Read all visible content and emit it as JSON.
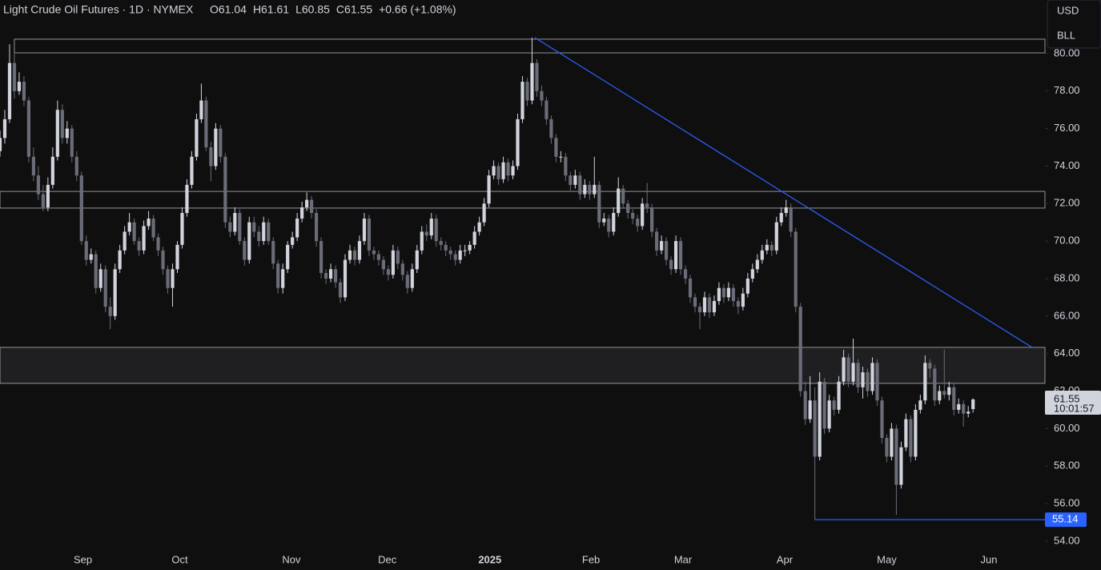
{
  "chart_data": {
    "type": "candlestick",
    "title": "Light Crude Oil Futures · 1D · NYMEX",
    "ohlc_labels": [
      "O61.04",
      "H61.61",
      "L60.85",
      "C61.55",
      "+0.66 (+1.08%)"
    ],
    "currency": "USD",
    "unit": "BLL",
    "countdown": "10:01:57",
    "up_color": "#d1d4dc",
    "down_color": "#6a6d78",
    "xlim": [
      0,
      218
    ],
    "xticks": [
      {
        "value": 17.3,
        "label": "Sep"
      },
      {
        "value": 37.5,
        "label": "Oct"
      },
      {
        "value": 60.8,
        "label": "Nov"
      },
      {
        "value": 80.8,
        "label": "Dec"
      },
      {
        "value": 102.2,
        "label": "2025"
      },
      {
        "value": 123.3,
        "label": "Feb"
      },
      {
        "value": 142.5,
        "label": "Mar"
      },
      {
        "value": 163.7,
        "label": "Apr"
      },
      {
        "value": 185,
        "label": "May"
      },
      {
        "value": 206.3,
        "label": "Jun"
      }
    ],
    "ylim": [
      53.48,
      82.86
    ],
    "yticks": [
      {
        "value": 54,
        "label": "54.00"
      },
      {
        "value": 56,
        "label": "56.00"
      },
      {
        "value": 58,
        "label": "58.00"
      },
      {
        "value": 60,
        "label": "60.00"
      },
      {
        "value": 62,
        "label": "62.00"
      },
      {
        "value": 64,
        "label": "64.00"
      },
      {
        "value": 66,
        "label": "66.00"
      },
      {
        "value": 68,
        "label": "68.00"
      },
      {
        "value": 70,
        "label": "70.00"
      },
      {
        "value": 72,
        "label": "72.00"
      },
      {
        "value": 74,
        "label": "74.00"
      },
      {
        "value": 76,
        "label": "76.00"
      },
      {
        "value": 78,
        "label": "78.00"
      },
      {
        "value": 80,
        "label": "80.00"
      }
    ],
    "zones": [
      {
        "from": 3,
        "low": 80.04,
        "high": 80.77
      },
      {
        "from": 0,
        "low": 71.76,
        "high": 72.65
      },
      {
        "from": 0,
        "low": 62.41,
        "high": 64.33
      }
    ],
    "trendline": {
      "x": [
        111.6,
        215.5
      ],
      "y": [
        80.85,
        64.3
      ],
      "color": "#2962ff"
    },
    "support": {
      "from": 170,
      "value": 55.14,
      "color": "#2962ff"
    },
    "candles": [
      [
        74.8,
        75.9,
        74.5,
        75.5
      ],
      [
        75.5,
        77,
        75.2,
        76.5
      ],
      [
        76.5,
        80.5,
        76.3,
        79.5
      ],
      [
        79.5,
        80,
        77.6,
        78
      ],
      [
        78,
        79,
        77.8,
        78.5
      ],
      [
        78.5,
        78.8,
        77.2,
        77.5
      ],
      [
        77.5,
        77.7,
        74.2,
        74.5
      ],
      [
        74.5,
        75,
        73.2,
        73.5
      ],
      [
        73.5,
        74,
        72.2,
        72.5
      ],
      [
        72.5,
        73,
        71.6,
        71.8
      ],
      [
        71.8,
        73.4,
        71.6,
        73
      ],
      [
        73,
        75,
        72.8,
        74.5
      ],
      [
        74.5,
        77.5,
        74.3,
        77
      ],
      [
        77,
        77.3,
        75.2,
        75.5
      ],
      [
        75.5,
        76.4,
        75.2,
        76
      ],
      [
        76,
        76.2,
        74.2,
        74.5
      ],
      [
        74.5,
        74.8,
        73.2,
        73.5
      ],
      [
        73.5,
        73.7,
        69.8,
        70
      ],
      [
        70,
        70.3,
        68.7,
        69
      ],
      [
        69,
        69.6,
        68.8,
        69.3
      ],
      [
        69.3,
        69.5,
        67.2,
        67.5
      ],
      [
        67.5,
        68.8,
        67.3,
        68.5
      ],
      [
        68.5,
        68.7,
        66.2,
        66.5
      ],
      [
        66.5,
        67,
        65.3,
        66
      ],
      [
        66,
        68.8,
        65.8,
        68.5
      ],
      [
        68.5,
        69.8,
        68.3,
        69.5
      ],
      [
        69.5,
        70.8,
        69.3,
        70.5
      ],
      [
        70.5,
        71.5,
        70.3,
        71
      ],
      [
        71,
        71.2,
        69.8,
        70
      ],
      [
        70,
        70.2,
        69.2,
        69.5
      ],
      [
        69.5,
        71.1,
        69.3,
        70.8
      ],
      [
        70.8,
        71.6,
        70.6,
        71.2
      ],
      [
        71.2,
        71.4,
        70,
        70.2
      ],
      [
        70.2,
        70.4,
        69.2,
        69.5
      ],
      [
        69.5,
        69.7,
        68.2,
        68.5
      ],
      [
        68.5,
        68.7,
        67.2,
        67.5
      ],
      [
        67.5,
        68.8,
        66.5,
        68.5
      ],
      [
        68.5,
        70,
        68.3,
        69.8
      ],
      [
        69.8,
        71.8,
        69.6,
        71.5
      ],
      [
        71.5,
        73.3,
        71.3,
        73
      ],
      [
        73,
        74.8,
        72.8,
        74.5
      ],
      [
        74.5,
        76.8,
        74.3,
        76.5
      ],
      [
        76.5,
        78.4,
        76.3,
        77.5
      ],
      [
        77.5,
        77.7,
        74.8,
        75
      ],
      [
        75,
        75.3,
        73.2,
        74
      ],
      [
        74,
        76.3,
        73.8,
        76
      ],
      [
        76,
        76.2,
        74.2,
        74.5
      ],
      [
        74.5,
        74.7,
        70.7,
        71
      ],
      [
        71,
        71.3,
        70.2,
        70.5
      ],
      [
        70.5,
        71.8,
        70.3,
        71.5
      ],
      [
        71.5,
        71.7,
        69.8,
        70
      ],
      [
        70,
        70.2,
        68.7,
        69
      ],
      [
        69,
        71.3,
        68.8,
        71
      ],
      [
        71,
        71.3,
        70.2,
        70.5
      ],
      [
        70.5,
        70.8,
        69.7,
        70
      ],
      [
        70,
        71.3,
        69.8,
        71
      ],
      [
        71,
        71.2,
        69.8,
        70
      ],
      [
        70,
        70.2,
        68.5,
        68.8
      ],
      [
        68.8,
        69,
        67.2,
        67.5
      ],
      [
        67.5,
        68.8,
        67.2,
        68.5
      ],
      [
        68.5,
        70,
        68.3,
        69.8
      ],
      [
        69.8,
        70.5,
        69.6,
        70.2
      ],
      [
        70.2,
        71.5,
        70,
        71.2
      ],
      [
        71.2,
        72.1,
        71,
        71.8
      ],
      [
        71.8,
        72.6,
        71.6,
        72.2
      ],
      [
        72.2,
        72.4,
        71.2,
        71.5
      ],
      [
        71.5,
        71.7,
        69.7,
        70
      ],
      [
        70,
        70.2,
        68,
        68.3
      ],
      [
        68.3,
        68.5,
        67.7,
        68
      ],
      [
        68,
        68.8,
        67.8,
        68.5
      ],
      [
        68.5,
        68.7,
        67.5,
        67.8
      ],
      [
        67.8,
        68,
        66.7,
        67
      ],
      [
        67,
        69.3,
        66.8,
        69
      ],
      [
        69,
        69.8,
        68.8,
        69.5
      ],
      [
        69.5,
        69.7,
        68.7,
        69
      ],
      [
        69,
        70.3,
        68.8,
        70
      ],
      [
        70,
        71.5,
        69.8,
        71.2
      ],
      [
        71.2,
        71.4,
        69.2,
        69.5
      ],
      [
        69.5,
        69.7,
        69,
        69.3
      ],
      [
        69.3,
        69.5,
        68.7,
        69
      ],
      [
        69,
        69.2,
        68.2,
        68.5
      ],
      [
        68.5,
        68.7,
        67.9,
        68.2
      ],
      [
        68.2,
        69.8,
        68,
        69.5
      ],
      [
        69.5,
        69.7,
        68.5,
        68.8
      ],
      [
        68.8,
        69,
        67.9,
        68.2
      ],
      [
        68.2,
        68.4,
        67.2,
        67.5
      ],
      [
        67.5,
        68.8,
        67.3,
        68.5
      ],
      [
        68.5,
        69.8,
        68.3,
        69.5
      ],
      [
        69.5,
        70.8,
        69.3,
        70.5
      ],
      [
        70.5,
        70.9,
        70,
        70.3
      ],
      [
        70.3,
        71.5,
        70.1,
        71.2
      ],
      [
        71.2,
        71.4,
        69.7,
        70
      ],
      [
        70,
        70.2,
        69.5,
        69.8
      ],
      [
        69.8,
        70,
        69.2,
        69.5
      ],
      [
        69.5,
        69.7,
        69,
        69.3
      ],
      [
        69.3,
        69.5,
        68.7,
        69
      ],
      [
        69,
        69.8,
        68.8,
        69.5
      ],
      [
        69.5,
        69.8,
        69.2,
        69.5
      ],
      [
        69.5,
        70,
        69.3,
        69.8
      ],
      [
        69.8,
        70.8,
        69.6,
        70.5
      ],
      [
        70.5,
        71.3,
        70.3,
        71
      ],
      [
        71,
        72.3,
        70.8,
        72
      ],
      [
        72,
        73.8,
        71.8,
        73.5
      ],
      [
        73.5,
        74.3,
        73.3,
        74
      ],
      [
        74,
        74.2,
        73,
        73.3
      ],
      [
        73.3,
        74.5,
        73.1,
        74.2
      ],
      [
        74.2,
        74.4,
        73.2,
        73.5
      ],
      [
        73.5,
        74.3,
        73.3,
        74
      ],
      [
        74,
        76.8,
        73.8,
        76.5
      ],
      [
        76.5,
        78.8,
        76.3,
        78.5
      ],
      [
        78.5,
        78.7,
        77.2,
        77.5
      ],
      [
        77.5,
        80.85,
        77.3,
        79.5
      ],
      [
        79.5,
        79.7,
        77.7,
        78
      ],
      [
        78,
        78.3,
        77.2,
        77.5
      ],
      [
        77.5,
        77.7,
        76.2,
        76.5
      ],
      [
        76.5,
        76.7,
        75.2,
        75.5
      ],
      [
        75.5,
        75.7,
        74.2,
        74.5
      ],
      [
        74.5,
        74.8,
        74.2,
        74.5
      ],
      [
        74.5,
        74.7,
        73.2,
        73.5
      ],
      [
        73.5,
        73.7,
        72.7,
        73
      ],
      [
        73,
        73.8,
        72.8,
        73.5
      ],
      [
        73.5,
        73.7,
        72.2,
        72.5
      ],
      [
        72.5,
        73.3,
        72.3,
        73
      ],
      [
        73,
        73.2,
        72.2,
        72.5
      ],
      [
        72.5,
        74.5,
        72.3,
        73
      ],
      [
        73,
        73.2,
        70.7,
        71
      ],
      [
        71,
        71.5,
        70.8,
        71.2
      ],
      [
        71.2,
        71.4,
        70.2,
        70.5
      ],
      [
        70.5,
        71.8,
        70.3,
        71.5
      ],
      [
        71.5,
        73.4,
        71.3,
        72.8
      ],
      [
        72.8,
        73,
        71.8,
        72
      ],
      [
        72,
        72.2,
        71.2,
        71.5
      ],
      [
        71.5,
        71.7,
        70.9,
        71.2
      ],
      [
        71.2,
        71.4,
        70.5,
        70.8
      ],
      [
        70.8,
        72.3,
        70.6,
        72
      ],
      [
        72,
        73.1,
        71.5,
        71.8
      ],
      [
        71.8,
        72,
        70.2,
        70.5
      ],
      [
        70.5,
        70.7,
        69.2,
        69.5
      ],
      [
        69.5,
        70.3,
        69.3,
        70
      ],
      [
        70,
        70.2,
        68.7,
        69
      ],
      [
        69,
        69.2,
        68.2,
        68.5
      ],
      [
        68.5,
        70.3,
        68.3,
        70
      ],
      [
        70,
        70.2,
        68.2,
        68.5
      ],
      [
        68.5,
        68.7,
        67.7,
        68
      ],
      [
        68,
        68.2,
        66.7,
        67
      ],
      [
        67,
        67.2,
        66.2,
        66.5
      ],
      [
        66.5,
        66.7,
        65.3,
        66.2
      ],
      [
        66.2,
        67.3,
        66,
        67
      ],
      [
        67,
        67.2,
        65.9,
        66.2
      ],
      [
        66.2,
        67.1,
        66,
        66.8
      ],
      [
        66.8,
        67.8,
        66.6,
        67.5
      ],
      [
        67.5,
        67.7,
        66.7,
        67
      ],
      [
        67,
        67.8,
        66.8,
        67.5
      ],
      [
        67.5,
        67.7,
        66.5,
        66.8
      ],
      [
        66.8,
        67,
        66.1,
        66.5
      ],
      [
        66.5,
        67.5,
        66.3,
        67.2
      ],
      [
        67.2,
        68.3,
        67,
        68
      ],
      [
        68,
        68.8,
        67.8,
        68.5
      ],
      [
        68.5,
        69.3,
        68.3,
        69
      ],
      [
        69,
        69.8,
        68.8,
        69.5
      ],
      [
        69.5,
        70.1,
        69.3,
        69.8
      ],
      [
        69.8,
        70,
        69.2,
        69.5
      ],
      [
        69.5,
        71.3,
        69.3,
        71
      ],
      [
        71,
        71.8,
        70.8,
        71.5
      ],
      [
        71.5,
        72.2,
        71.3,
        71.8
      ],
      [
        71.8,
        72,
        70.2,
        70.5
      ],
      [
        70.5,
        70.7,
        66.2,
        66.5
      ],
      [
        66.5,
        66.7,
        61.7,
        62
      ],
      [
        62,
        62.5,
        60.2,
        60.5
      ],
      [
        60.5,
        62.8,
        60.3,
        61.5
      ],
      [
        61.5,
        62.2,
        55.14,
        58.5
      ],
      [
        58.5,
        63,
        58.3,
        62.5
      ],
      [
        62.5,
        62.7,
        59.7,
        60
      ],
      [
        60,
        61.8,
        59.8,
        61.5
      ],
      [
        61.5,
        61.7,
        60.7,
        61
      ],
      [
        61,
        62.8,
        60.8,
        62.5
      ],
      [
        62.5,
        64.2,
        62.3,
        63.8
      ],
      [
        63.8,
        64,
        62.2,
        62.5
      ],
      [
        62.5,
        64.8,
        62.3,
        63.5
      ],
      [
        63.5,
        63.7,
        61.9,
        62.2
      ],
      [
        62.2,
        63.3,
        61.6,
        63
      ],
      [
        63,
        63.2,
        61.7,
        62
      ],
      [
        62,
        63.8,
        61.8,
        63.5
      ],
      [
        63.5,
        63.7,
        61.2,
        61.5
      ],
      [
        61.5,
        61.7,
        59.2,
        59.5
      ],
      [
        59.5,
        59.7,
        58.2,
        58.5
      ],
      [
        58.5,
        60.3,
        58.3,
        60
      ],
      [
        60,
        60.2,
        55.4,
        57
      ],
      [
        57,
        59.3,
        56.8,
        59
      ],
      [
        59,
        60.8,
        58.8,
        60.5
      ],
      [
        60.5,
        60.7,
        58.2,
        58.5
      ],
      [
        58.5,
        61.3,
        58.3,
        61
      ],
      [
        61,
        61.8,
        60.8,
        61.5
      ],
      [
        61.5,
        63.9,
        61.3,
        63.5
      ],
      [
        63.5,
        63.7,
        62.7,
        63.2
      ],
      [
        63.2,
        63.4,
        61.2,
        61.5
      ],
      [
        61.5,
        62.3,
        61.3,
        62
      ],
      [
        62,
        64.2,
        61.6,
        61.8
      ],
      [
        61.8,
        62.5,
        61.5,
        62.2
      ],
      [
        62.2,
        62.4,
        60.7,
        61
      ],
      [
        61,
        61.6,
        60.8,
        61.3
      ],
      [
        61.3,
        61.5,
        60.1,
        60.8
      ],
      [
        60.8,
        61.2,
        60.6,
        60.9
      ],
      [
        61.04,
        61.61,
        60.85,
        61.55
      ]
    ]
  }
}
